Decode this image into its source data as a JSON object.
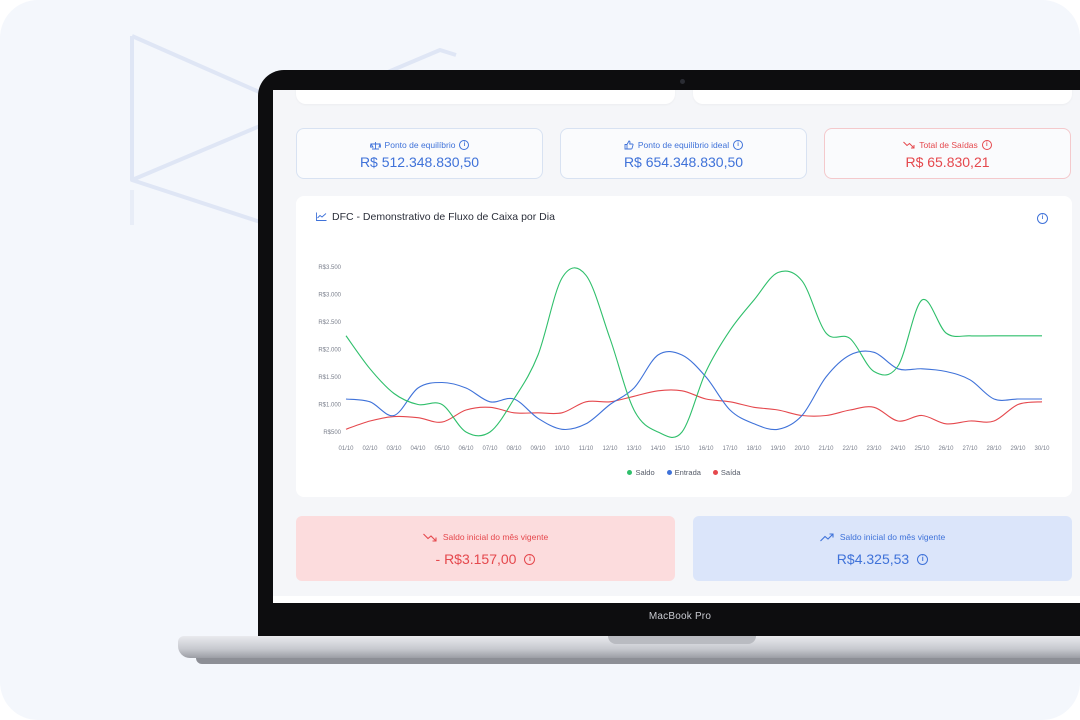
{
  "kpis": [
    {
      "label": "Ponto de equilíbrio",
      "value": "R$ 512.348.830,50",
      "icon": "balance-scale-icon"
    },
    {
      "label": "Ponto de equilíbrio ideal",
      "value": "R$ 654.348.830,50",
      "icon": "thumbs-up-icon"
    },
    {
      "label": "Total de Saídas",
      "value": "R$ 65.830,21",
      "icon": "trend-down-icon"
    }
  ],
  "chart_title": "DFC - Demonstrativo de Fluxo de Caixa por Dia",
  "chart_data": {
    "type": "line",
    "title": "DFC - Demonstrativo de Fluxo de Caixa por Dia",
    "x": [
      "01/10",
      "02/10",
      "03/10",
      "04/10",
      "05/10",
      "06/10",
      "07/10",
      "08/10",
      "09/10",
      "10/10",
      "11/10",
      "12/10",
      "13/10",
      "14/10",
      "15/10",
      "16/10",
      "17/10",
      "18/10",
      "19/10",
      "20/10",
      "21/10",
      "22/10",
      "23/10",
      "24/10",
      "25/10",
      "26/10",
      "27/10",
      "28/10",
      "29/10",
      "30/10"
    ],
    "y_ticks": [
      "R$500",
      "R$1.000",
      "R$1.500",
      "R$2.000",
      "R$2.500",
      "R$3.000",
      "R$3.500"
    ],
    "ylim": [
      500,
      3500
    ],
    "series": [
      {
        "name": "Saldo",
        "color": "#2fbf6b",
        "values": [
          2250,
          1650,
          1200,
          1000,
          1000,
          500,
          500,
          1100,
          1900,
          3300,
          3350,
          2200,
          900,
          500,
          500,
          1600,
          2350,
          2900,
          3400,
          3250,
          2300,
          2200,
          1600,
          1700,
          2900,
          2300,
          2250,
          2250,
          2250,
          2250
        ]
      },
      {
        "name": "Entrada",
        "color": "#3f72d9",
        "values": [
          1100,
          1050,
          800,
          1300,
          1400,
          1300,
          1050,
          1100,
          750,
          550,
          650,
          1000,
          1300,
          1900,
          1900,
          1500,
          900,
          650,
          550,
          800,
          1500,
          1900,
          1950,
          1650,
          1650,
          1600,
          1450,
          1100,
          1100,
          1100
        ]
      },
      {
        "name": "Saída",
        "color": "#e5484d",
        "values": [
          550,
          700,
          780,
          760,
          680,
          900,
          950,
          850,
          850,
          850,
          1050,
          1050,
          1150,
          1250,
          1250,
          1100,
          1050,
          950,
          900,
          800,
          800,
          900,
          950,
          700,
          800,
          650,
          700,
          700,
          1000,
          1050
        ]
      }
    ]
  },
  "legend": [
    "Saldo",
    "Entrada",
    "Saída"
  ],
  "bottom_cards": [
    {
      "label": "Saldo inicial do mês vigente",
      "value": "- R$3.157,00",
      "icon": "trend-down-icon"
    },
    {
      "label": "Saldo inicial do mês vigente",
      "value": "R$4.325,53",
      "icon": "trend-up-icon"
    }
  ],
  "info_glyph": "i",
  "laptop_label": "MacBook Pro",
  "colors": {
    "accent": "#3f72d9",
    "danger": "#e5484d",
    "success": "#2fbf6b"
  }
}
